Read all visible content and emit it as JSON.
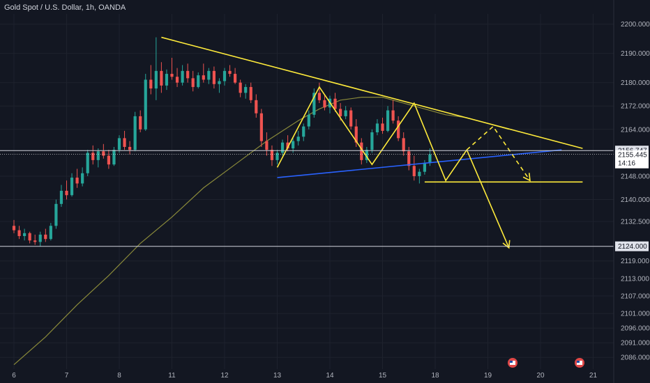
{
  "header": {
    "title": "Gold Spot / U.S. Dollar, 1h, OANDA"
  },
  "colors": {
    "background": "#131722",
    "up": "#26a69a",
    "down": "#ef5350",
    "ma": "#8a8a3a",
    "trend": "#ffeb3b",
    "support": "#2962ff",
    "level_line": "#d1d4dc",
    "current_tag": "#ffffff"
  },
  "chart_data": {
    "type": "candlestick",
    "title": "Gold Spot / U.S. Dollar, 1h, OANDA",
    "x_ticks": [
      "6",
      "7",
      "8",
      "11",
      "12",
      "13",
      "14",
      "15",
      "18",
      "19",
      "20",
      "21"
    ],
    "x_tick_index": [
      0,
      10,
      20,
      30,
      40,
      50,
      60,
      70,
      80,
      90,
      100,
      110
    ],
    "y_ticks": [
      2200.0,
      2190.0,
      2180.0,
      2172.0,
      2164.0,
      2148.0,
      2140.0,
      2132.5,
      2119.0,
      2113.0,
      2107.0,
      2101.0,
      2096.0,
      2091.0,
      2086.0
    ],
    "ylim": [
      2082.0,
      2203.5
    ],
    "horizontal_levels": [
      {
        "label": "2156.747",
        "value": 2156.747,
        "style": "tag"
      },
      {
        "label": "2124.000",
        "value": 2124.0,
        "style": "tag"
      }
    ],
    "current_price": {
      "label": "2155.445",
      "countdown": "14:16",
      "value": 2155.445
    },
    "candles_ohlc": [
      [
        2131.0,
        2133.0,
        2128.5,
        2129.5
      ],
      [
        2129.5,
        2131.0,
        2126.5,
        2127.5
      ],
      [
        2127.5,
        2130.0,
        2126.0,
        2128.5
      ],
      [
        2128.5,
        2129.0,
        2125.0,
        2126.0
      ],
      [
        2126.0,
        2128.0,
        2124.5,
        2125.5
      ],
      [
        2125.5,
        2129.0,
        2124.0,
        2128.0
      ],
      [
        2128.0,
        2130.0,
        2125.5,
        2126.5
      ],
      [
        2126.5,
        2132.0,
        2126.0,
        2131.0
      ],
      [
        2131.0,
        2140.0,
        2130.0,
        2138.5
      ],
      [
        2138.5,
        2145.0,
        2137.5,
        2143.0
      ],
      [
        2143.0,
        2146.5,
        2140.0,
        2141.5
      ],
      [
        2141.5,
        2149.0,
        2141.0,
        2147.5
      ],
      [
        2147.5,
        2150.5,
        2144.0,
        2145.5
      ],
      [
        2145.5,
        2151.0,
        2144.5,
        2149.0
      ],
      [
        2149.0,
        2157.0,
        2148.0,
        2156.0
      ],
      [
        2156.0,
        2158.5,
        2152.0,
        2153.5
      ],
      [
        2153.5,
        2157.5,
        2151.0,
        2156.5
      ],
      [
        2156.5,
        2159.0,
        2154.0,
        2155.0
      ],
      [
        2155.0,
        2157.0,
        2150.5,
        2152.0
      ],
      [
        2152.0,
        2158.0,
        2151.5,
        2157.0
      ],
      [
        2157.0,
        2162.0,
        2156.0,
        2161.0
      ],
      [
        2161.0,
        2163.5,
        2157.0,
        2158.0
      ],
      [
        2158.0,
        2160.0,
        2155.5,
        2157.0
      ],
      [
        2157.0,
        2170.0,
        2156.5,
        2168.5
      ],
      [
        2168.5,
        2170.5,
        2163.0,
        2164.0
      ],
      [
        2164.0,
        2183.0,
        2163.5,
        2181.0
      ],
      [
        2181.0,
        2186.0,
        2176.0,
        2178.0
      ],
      [
        2178.0,
        2195.5,
        2174.0,
        2184.0
      ],
      [
        2184.0,
        2187.0,
        2176.5,
        2179.0
      ],
      [
        2179.0,
        2184.5,
        2177.5,
        2183.0
      ],
      [
        2183.0,
        2188.5,
        2181.0,
        2182.0
      ],
      [
        2182.0,
        2185.0,
        2178.5,
        2180.0
      ],
      [
        2180.0,
        2186.0,
        2179.0,
        2184.0
      ],
      [
        2184.0,
        2186.5,
        2180.0,
        2181.5
      ],
      [
        2181.5,
        2184.0,
        2177.0,
        2178.5
      ],
      [
        2178.5,
        2183.5,
        2178.0,
        2182.5
      ],
      [
        2182.5,
        2186.5,
        2180.0,
        2181.0
      ],
      [
        2181.0,
        2185.0,
        2179.5,
        2184.0
      ],
      [
        2184.0,
        2185.5,
        2178.0,
        2179.5
      ],
      [
        2179.5,
        2181.5,
        2176.5,
        2180.5
      ],
      [
        2180.5,
        2185.0,
        2179.0,
        2184.0
      ],
      [
        2184.0,
        2186.0,
        2182.0,
        2183.0
      ],
      [
        2183.0,
        2185.0,
        2179.5,
        2180.0
      ],
      [
        2180.0,
        2181.0,
        2175.0,
        2176.5
      ],
      [
        2176.5,
        2179.5,
        2174.5,
        2178.5
      ],
      [
        2178.5,
        2180.0,
        2173.0,
        2174.0
      ],
      [
        2174.0,
        2176.0,
        2168.0,
        2169.5
      ],
      [
        2169.5,
        2171.0,
        2158.0,
        2160.0
      ],
      [
        2160.0,
        2163.0,
        2155.0,
        2157.0
      ],
      [
        2157.0,
        2158.5,
        2151.5,
        2153.5
      ],
      [
        2153.5,
        2157.0,
        2152.0,
        2156.0
      ],
      [
        2156.0,
        2160.5,
        2155.0,
        2159.5
      ],
      [
        2159.5,
        2162.0,
        2156.5,
        2157.5
      ],
      [
        2157.5,
        2161.0,
        2156.0,
        2160.0
      ],
      [
        2160.0,
        2163.5,
        2158.5,
        2161.5
      ],
      [
        2161.5,
        2166.0,
        2160.0,
        2165.0
      ],
      [
        2165.0,
        2170.5,
        2164.0,
        2169.0
      ],
      [
        2169.0,
        2178.0,
        2168.0,
        2176.5
      ],
      [
        2176.5,
        2180.0,
        2173.0,
        2174.0
      ],
      [
        2174.0,
        2176.0,
        2170.5,
        2171.5
      ],
      [
        2171.5,
        2175.5,
        2169.5,
        2174.5
      ],
      [
        2174.5,
        2176.5,
        2170.0,
        2171.0
      ],
      [
        2171.0,
        2173.0,
        2167.0,
        2168.5
      ],
      [
        2168.5,
        2172.0,
        2167.5,
        2170.5
      ],
      [
        2170.5,
        2171.5,
        2164.0,
        2165.0
      ],
      [
        2165.0,
        2167.5,
        2158.0,
        2159.5
      ],
      [
        2159.5,
        2161.0,
        2152.0,
        2153.5
      ],
      [
        2153.5,
        2158.0,
        2152.5,
        2157.0
      ],
      [
        2157.0,
        2164.0,
        2156.0,
        2163.0
      ],
      [
        2163.0,
        2167.5,
        2162.0,
        2166.0
      ],
      [
        2166.0,
        2168.0,
        2162.5,
        2163.5
      ],
      [
        2163.5,
        2172.0,
        2163.0,
        2170.5
      ],
      [
        2170.5,
        2174.0,
        2166.0,
        2167.0
      ],
      [
        2167.0,
        2168.5,
        2160.0,
        2161.0
      ],
      [
        2161.0,
        2163.0,
        2155.0,
        2156.5
      ],
      [
        2156.5,
        2158.0,
        2150.0,
        2151.5
      ],
      [
        2151.5,
        2155.0,
        2146.5,
        2148.0
      ],
      [
        2148.0,
        2150.5,
        2145.5,
        2149.5
      ],
      [
        2149.5,
        2153.5,
        2148.5,
        2152.5
      ],
      [
        2152.5,
        2157.5,
        2151.5,
        2155.445
      ]
    ],
    "moving_average": [
      [
        0,
        2083.5
      ],
      [
        6,
        2093
      ],
      [
        12,
        2104
      ],
      [
        18,
        2114
      ],
      [
        24,
        2125
      ],
      [
        30,
        2134
      ],
      [
        36,
        2144
      ],
      [
        42,
        2152
      ],
      [
        48,
        2160
      ],
      [
        54,
        2167
      ],
      [
        58,
        2171
      ],
      [
        62,
        2174
      ],
      [
        66,
        2175
      ],
      [
        70,
        2175
      ],
      [
        74,
        2173
      ],
      [
        78,
        2171
      ],
      [
        82,
        2169
      ],
      [
        86,
        2168
      ],
      [
        90,
        2166
      ],
      [
        94,
        2164
      ]
    ],
    "drawings": {
      "trend_resistance": [
        [
          28,
          2195.5
        ],
        [
          108,
          2157.5
        ]
      ],
      "support_line": [
        [
          50,
          2147.5
        ],
        [
          104,
          2157.0
        ]
      ],
      "w_pattern": [
        [
          50,
          2151.0
        ],
        [
          58,
          2178.5
        ],
        [
          68,
          2152.0
        ],
        [
          76,
          2173.0
        ],
        [
          82,
          2146.5
        ],
        [
          86,
          2157.0
        ]
      ],
      "neckline_lower": [
        [
          78,
          2146.0
        ],
        [
          108,
          2146.0
        ]
      ],
      "projection_down": [
        [
          86,
          2157.0
        ],
        [
          94,
          2123.5
        ]
      ],
      "projection_dashed": [
        [
          86,
          2157.0
        ],
        [
          91,
          2165.0
        ],
        [
          98,
          2146.5
        ]
      ]
    }
  }
}
